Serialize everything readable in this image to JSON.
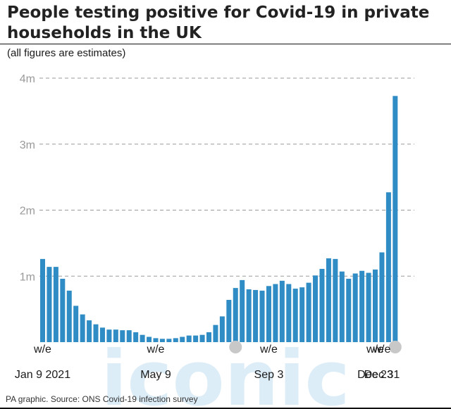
{
  "title": "People testing positive for Covid-19 in private households in the UK",
  "subtitle": "(all figures are estimates)",
  "source": "PA graphic. Source: ONS Covid-19 infection survey",
  "watermark": "iconic",
  "colors": {
    "bar": "#2f8cc4",
    "grid": "#9a9a9a",
    "watermark": "#cfe6f4",
    "marker": "#c8c8c8"
  },
  "chart_data": {
    "type": "bar",
    "ylabel": "",
    "xlabel": "",
    "ylim": [
      0,
      4000000
    ],
    "y_ticks": [
      {
        "value": 1000000,
        "label": "1m"
      },
      {
        "value": 2000000,
        "label": "2m"
      },
      {
        "value": 3000000,
        "label": "3m"
      },
      {
        "value": 4000000,
        "label": "4m"
      }
    ],
    "x_tick_labels": [
      {
        "index": 0,
        "line1": "w/e",
        "line2": "Jan 9 2021"
      },
      {
        "index": 17,
        "line1": "w/e",
        "line2": "May 9"
      },
      {
        "index": 34,
        "line1": "w/e",
        "line2": "Sep 3"
      },
      {
        "index": 50,
        "line1": "w/e",
        "line2": "Dec 23"
      },
      {
        "index": 51,
        "line1": "w/e",
        "line2": "Dec 31"
      }
    ],
    "values": [
      1260000,
      1140000,
      1140000,
      960000,
      780000,
      550000,
      420000,
      330000,
      270000,
      220000,
      190000,
      190000,
      180000,
      180000,
      150000,
      110000,
      80000,
      60000,
      50000,
      50000,
      60000,
      80000,
      100000,
      100000,
      110000,
      150000,
      260000,
      390000,
      640000,
      820000,
      940000,
      800000,
      790000,
      780000,
      850000,
      880000,
      930000,
      880000,
      810000,
      830000,
      900000,
      1010000,
      1110000,
      1270000,
      1260000,
      1070000,
      960000,
      1040000,
      1080000,
      1050000,
      1100000,
      1360000,
      2270000,
      3730000
    ]
  }
}
